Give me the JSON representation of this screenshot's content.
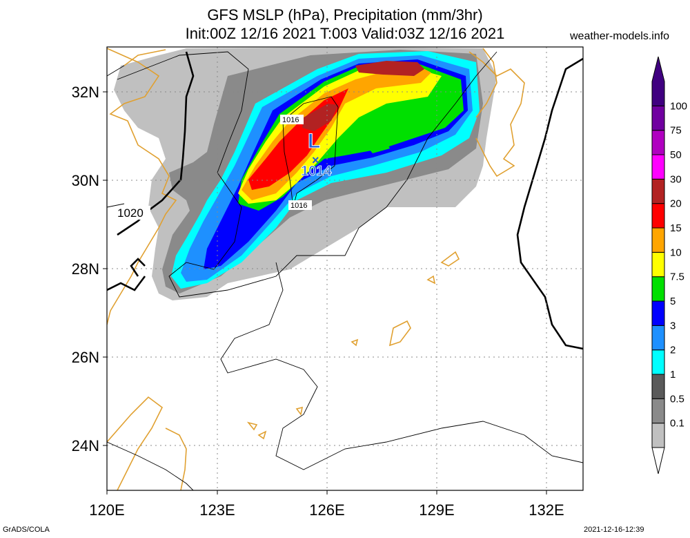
{
  "title_line1": "GFS MSLP (hPa), Precipitation (mm/3hr)",
  "title_line2": "Init:00Z 12/16 2021 T:003 Valid:03Z 12/16 2021",
  "site": "weather-models.info",
  "footer_left": "GrADS/COLA",
  "footer_right": "2021-12-16-12:39",
  "map": {
    "lon_range": [
      120,
      133
    ],
    "lat_range": [
      23,
      33
    ],
    "x_ticks": [
      "120E",
      "123E",
      "126E",
      "129E",
      "132E"
    ],
    "y_ticks": [
      "24N",
      "26N",
      "28N",
      "30N",
      "32N"
    ],
    "grid": true,
    "low_center": {
      "symbol": "L",
      "value": "1014"
    },
    "isobar_labels": [
      "1016",
      "1016",
      "1020"
    ]
  },
  "colorbar": {
    "labels": [
      "0.1",
      "0.5",
      "1",
      "2",
      "3",
      "5",
      "7.5",
      "10",
      "15",
      "20",
      "30",
      "50",
      "75",
      "100"
    ],
    "colors": [
      "#c0c0c0",
      "#8a8a8a",
      "#5a5a5a",
      "#00ffff",
      "#1e90ff",
      "#0000ff",
      "#00e000",
      "#ffff00",
      "#ffa500",
      "#ff0000",
      "#b22222",
      "#ff00ff",
      "#b000c0",
      "#7000a0",
      "#400080"
    ]
  }
}
